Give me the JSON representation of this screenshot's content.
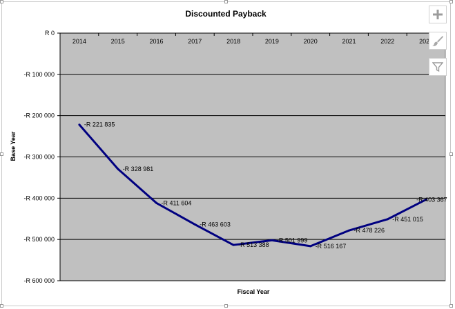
{
  "chart_data": {
    "type": "line",
    "title": "Discounted Payback",
    "xlabel": "Fiscal Year",
    "ylabel": "Base Year",
    "categories": [
      "2014",
      "2015",
      "2016",
      "2017",
      "2018",
      "2019",
      "2020",
      "2021",
      "2022",
      "2023"
    ],
    "series": [
      {
        "values": [
          -221835,
          -328981,
          -411604,
          -463603,
          -513388,
          -501999,
          -516167,
          -478226,
          -451015,
          -403367
        ],
        "labels": [
          "-R 221 835",
          "-R 328 981",
          "-R 411 604",
          "-R 463 603",
          "-R 513 388",
          "-R 501 999",
          "-R 516 167",
          "-R 478 226",
          "-R 451 015",
          "-R 403 367"
        ]
      }
    ],
    "ylim": [
      -600000,
      0
    ],
    "yticks": [
      0,
      -100000,
      -200000,
      -300000,
      -400000,
      -500000,
      -600000
    ],
    "ytick_labels": [
      "R 0",
      "-R 100 000",
      "-R 200 000",
      "-R 300 000",
      "-R 400 000",
      "-R 500 000",
      "-R 600 000"
    ],
    "x_axis_position": "top",
    "grid": true,
    "plot_background": "#c0c0c0",
    "line_color": "#000080",
    "legend": "none"
  },
  "ui": {
    "buttons": [
      {
        "name": "chart-elements-button",
        "icon": "plus-icon"
      },
      {
        "name": "chart-styles-button",
        "icon": "brush-icon"
      },
      {
        "name": "chart-filters-button",
        "icon": "filter-icon"
      }
    ]
  }
}
